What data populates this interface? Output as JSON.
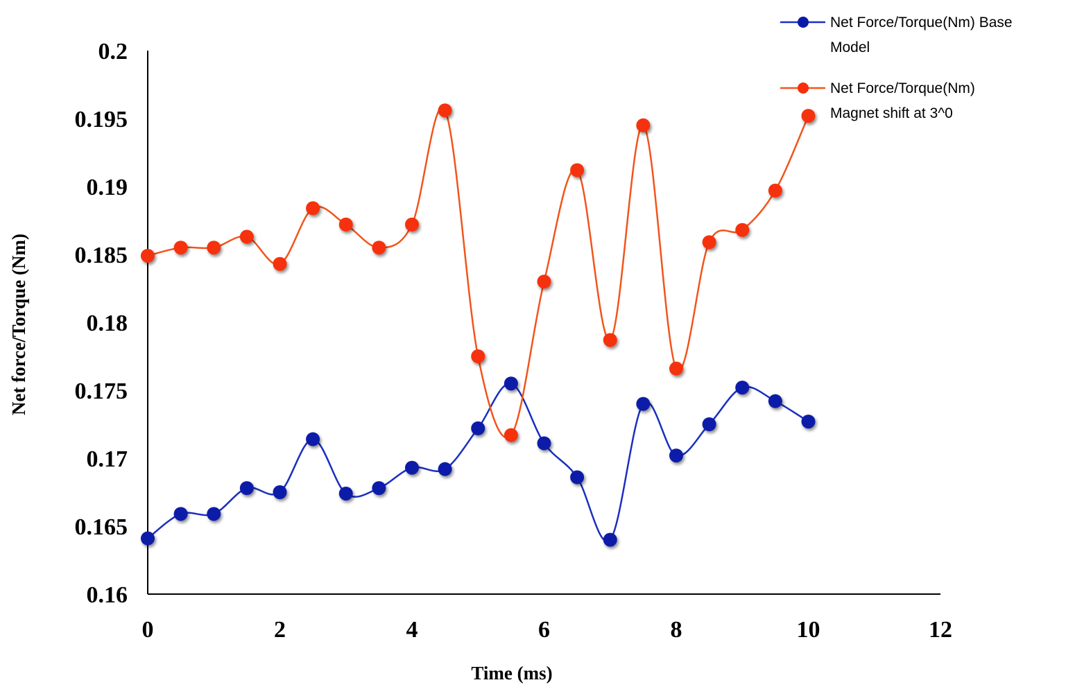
{
  "chart_data": {
    "type": "line",
    "title": "",
    "xlabel": "Time (ms)",
    "ylabel": "Net force/Torque (Nm)",
    "xlim": [
      0,
      12
    ],
    "ylim": [
      0.16,
      0.2
    ],
    "x_ticks": [
      "0",
      "2",
      "4",
      "6",
      "8",
      "10",
      "12"
    ],
    "y_ticks": [
      "0.16",
      "0.165",
      "0.17",
      "0.175",
      "0.18",
      "0.185",
      "0.19",
      "0.195",
      "0.2"
    ],
    "grid": false,
    "legend_position": "top-right",
    "series": [
      {
        "name": "Net Force/Torque(Nm) Base Model",
        "legend_lines": [
          "Net Force/Torque(Nm) Base",
          "Model"
        ],
        "color": "#1a2fbf",
        "marker_color": "#0a1aa8",
        "x": [
          0,
          0.5,
          1,
          1.5,
          2,
          2.5,
          3,
          3.5,
          4,
          4.5,
          5,
          5.5,
          6,
          6.5,
          7,
          7.5,
          8,
          8.5,
          9,
          9.5,
          10
        ],
        "y": [
          0.1641,
          0.1659,
          0.1659,
          0.1678,
          0.1675,
          0.1714,
          0.1674,
          0.1678,
          0.1693,
          0.1692,
          0.1722,
          0.1755,
          0.1711,
          0.1686,
          0.164,
          0.174,
          0.1702,
          0.1725,
          0.1752,
          0.1742,
          0.1727
        ]
      },
      {
        "name": "Net Force/Torque(Nm) Magnet shift at 3^0",
        "legend_lines": [
          "Net Force/Torque(Nm)",
          "Magnet shift at 3^0"
        ],
        "color": "#f2541b",
        "marker_color": "#f5300a",
        "x": [
          0,
          0.5,
          1,
          1.5,
          2,
          2.5,
          3,
          3.5,
          4,
          4.5,
          5,
          5.5,
          6,
          6.5,
          7,
          7.5,
          8,
          8.5,
          9,
          9.5,
          10
        ],
        "y": [
          0.1849,
          0.1855,
          0.1855,
          0.1863,
          0.1843,
          0.1884,
          0.1872,
          0.1855,
          0.1872,
          0.1956,
          0.1775,
          0.1717,
          0.183,
          0.1912,
          0.1787,
          0.1945,
          0.1766,
          0.1859,
          0.1868,
          0.1897,
          0.1952
        ]
      }
    ]
  }
}
